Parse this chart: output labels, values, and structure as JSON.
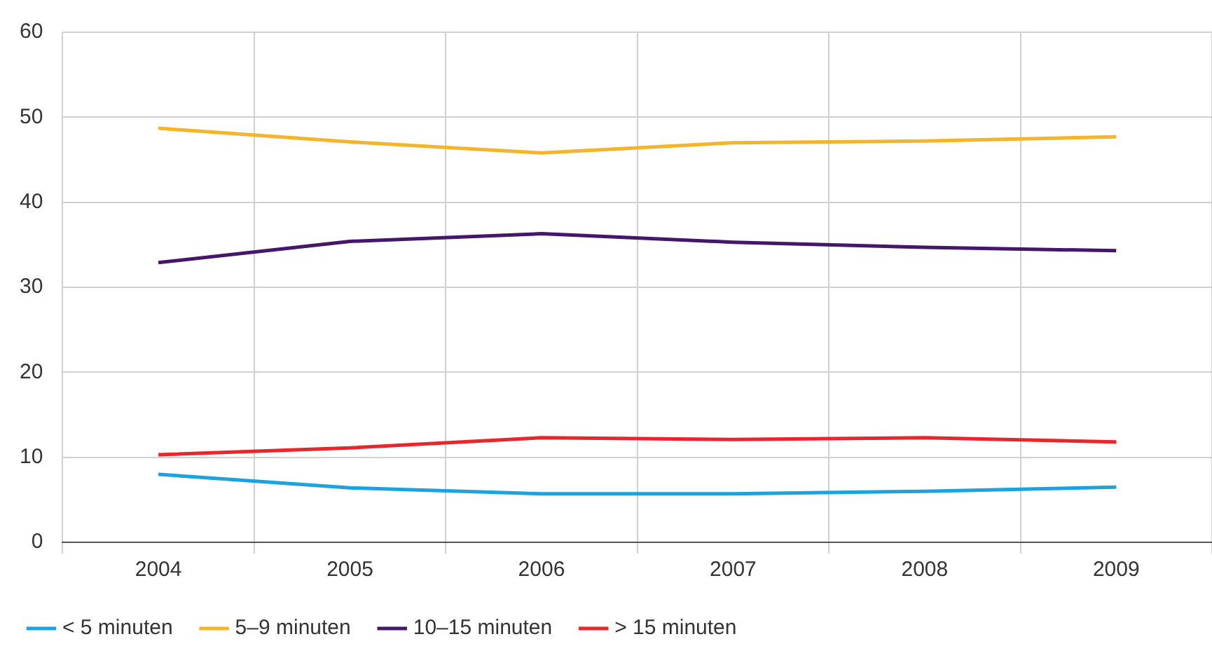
{
  "chart_data": {
    "type": "line",
    "categories": [
      "2004",
      "2005",
      "2006",
      "2007",
      "2008",
      "2009"
    ],
    "series": [
      {
        "name": "< 5 minuten",
        "color": "#1aa3e0",
        "values": [
          8.0,
          6.4,
          5.7,
          5.7,
          6.0,
          6.5
        ]
      },
      {
        "name": "5–9 minuten",
        "color": "#f5b52a",
        "values": [
          48.7,
          47.1,
          45.8,
          47.0,
          47.2,
          47.7
        ]
      },
      {
        "name": "10–15 minuten",
        "color": "#44176b",
        "values": [
          32.9,
          35.4,
          36.3,
          35.3,
          34.7,
          34.3
        ]
      },
      {
        "name": "> 15 minuten",
        "color": "#e8262c",
        "values": [
          10.3,
          11.1,
          12.3,
          12.1,
          12.3,
          11.8
        ]
      }
    ],
    "ylim": [
      0,
      60
    ],
    "yticks": [
      0,
      10,
      20,
      30,
      40,
      50,
      60
    ],
    "grid": true,
    "legend": "bottom left",
    "marker": "none",
    "line_style": "solid"
  }
}
